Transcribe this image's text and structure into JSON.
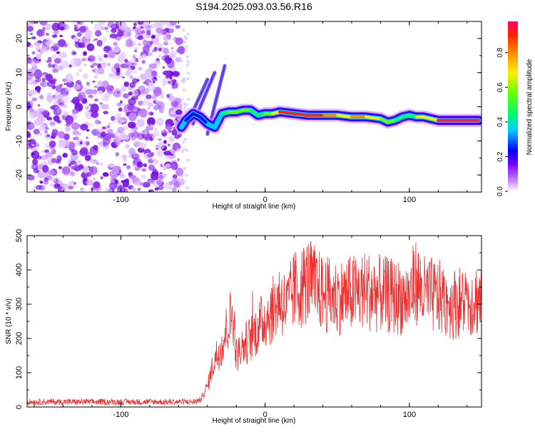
{
  "title": "S194.2025.093.03.56.R16",
  "colors": {
    "trace": "#ee3030",
    "scatter": "#8a2be2",
    "frame": "#000000"
  },
  "chart_data": [
    {
      "type": "heatmap",
      "xlabel": "Height of straight line (km)",
      "ylabel": "Frequency (Hz)",
      "xlim": [
        -165,
        150
      ],
      "ylim": [
        -25,
        25
      ],
      "xticks": [
        -100,
        0,
        100
      ],
      "yticks": [
        -20,
        -10,
        0,
        10,
        20
      ],
      "colorbar": {
        "label": "Normalized spectral amplitude",
        "range": [
          0,
          0.98
        ],
        "ticks": [
          "0.0",
          "0.2",
          "0.4",
          "0.6",
          "0.8"
        ],
        "tick_values": [
          0,
          0.2,
          0.4,
          0.6,
          0.8
        ]
      },
      "noise_region_x": [
        -165,
        -58
      ],
      "signal_track": {
        "x": [
          -58,
          -55,
          -50,
          -45,
          -40,
          -35,
          -30,
          -25,
          -20,
          -15,
          -10,
          -5,
          0,
          5,
          10,
          20,
          30,
          40,
          50,
          60,
          70,
          80,
          85,
          90,
          95,
          100,
          105,
          110,
          115,
          120,
          130,
          140,
          148
        ],
        "freq": [
          -6,
          -4,
          -2,
          -3,
          -5,
          -6,
          -2,
          -1.5,
          -1.5,
          -1,
          -1,
          -2.5,
          -2,
          -2,
          -1.5,
          -2,
          -2.5,
          -2.5,
          -2.5,
          -3,
          -3,
          -3.5,
          -4.5,
          -4,
          -3,
          -2.5,
          -3,
          -3,
          -3.5,
          -4,
          -4,
          -4,
          -4
        ],
        "amplitude": [
          0.3,
          0.2,
          0.2,
          0.2,
          0.2,
          0.3,
          0.35,
          0.45,
          0.5,
          0.5,
          0.45,
          0.4,
          0.45,
          0.5,
          0.85,
          0.9,
          0.9,
          0.85,
          0.7,
          0.6,
          0.9,
          0.5,
          0.5,
          0.5,
          0.4,
          0.4,
          0.5,
          0.85,
          0.5,
          0.9,
          0.95,
          0.95,
          0.9
        ]
      }
    },
    {
      "type": "line",
      "xlabel": "Height of straight line (km)",
      "ylabel": "SNR (10 * v/v)",
      "xlim": [
        -165,
        150
      ],
      "ylim": [
        0,
        500
      ],
      "xticks": [
        -100,
        0,
        100
      ],
      "yticks": [
        0,
        100,
        200,
        300,
        400,
        500
      ],
      "series": [
        {
          "x": [
            -165,
            -140,
            -120,
            -100,
            -80,
            -60,
            -50,
            -45,
            -40,
            -35,
            -30,
            -25,
            -22,
            -20,
            -15,
            -10,
            -5,
            0,
            5,
            10,
            15,
            20,
            25,
            30,
            40,
            50,
            60,
            70,
            80,
            90,
            100,
            104,
            110,
            120,
            130,
            140,
            150
          ],
          "values": [
            15,
            15,
            15,
            15,
            15,
            15,
            15,
            20,
            60,
            140,
            180,
            250,
            270,
            150,
            180,
            200,
            230,
            260,
            280,
            320,
            290,
            340,
            350,
            370,
            330,
            320,
            330,
            340,
            330,
            320,
            320,
            370,
            330,
            320,
            300,
            310,
            320
          ]
        }
      ]
    }
  ]
}
